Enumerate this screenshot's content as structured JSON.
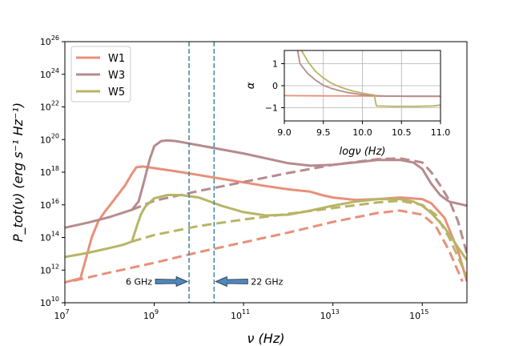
{
  "chart_data": [
    {
      "type": "line",
      "title": "",
      "xlabel": "ν (Hz)",
      "ylabel": "P_tot(ν) (erg s⁻¹ Hz⁻¹)",
      "xscale": "log",
      "yscale": "log",
      "xlim_log10": [
        7,
        16
      ],
      "ylim_log10": [
        10,
        26
      ],
      "xticks_log10": [
        7,
        9,
        11,
        13,
        15
      ],
      "yticks_log10": [
        10,
        12,
        14,
        16,
        18,
        20,
        22,
        24,
        26
      ],
      "tick_base": "10",
      "legend": {
        "placement": "top-left",
        "entries": [
          {
            "label": "W1",
            "color": "#e8907a"
          },
          {
            "label": "W3",
            "color": "#b68b8d"
          },
          {
            "label": "W5",
            "color": "#b7b565"
          }
        ]
      },
      "series": [
        {
          "name": "W1 total",
          "style": "solid",
          "color": "#e8907a",
          "points_log10": [
            [
              7.0,
              11.25
            ],
            [
              7.35,
              11.5
            ],
            [
              7.45,
              12.5
            ],
            [
              7.6,
              14.0
            ],
            [
              7.75,
              15.0
            ],
            [
              7.9,
              15.6
            ],
            [
              8.1,
              16.3
            ],
            [
              8.35,
              17.2
            ],
            [
              8.5,
              17.9
            ],
            [
              8.6,
              18.3
            ],
            [
              8.75,
              18.35
            ],
            [
              9.5,
              18.05
            ],
            [
              10.5,
              17.6
            ],
            [
              11.5,
              17.15
            ],
            [
              12.0,
              16.95
            ],
            [
              12.5,
              16.8
            ],
            [
              12.75,
              16.6
            ],
            [
              13.0,
              16.45
            ],
            [
              13.5,
              16.3
            ],
            [
              14.0,
              16.35
            ],
            [
              14.5,
              16.45
            ],
            [
              15.0,
              16.35
            ],
            [
              15.2,
              16.1
            ],
            [
              15.5,
              15.2
            ],
            [
              15.8,
              13.2
            ],
            [
              16.0,
              11.3
            ]
          ]
        },
        {
          "name": "W1 synchrotron",
          "style": "dashed",
          "color": "#e8907a",
          "points_log10": [
            [
              7.2,
              11.35
            ],
            [
              8.0,
              11.85
            ],
            [
              9.0,
              12.45
            ],
            [
              10.0,
              13.1
            ],
            [
              11.0,
              13.7
            ],
            [
              12.0,
              14.3
            ],
            [
              13.0,
              14.95
            ],
            [
              14.0,
              15.5
            ],
            [
              14.5,
              15.65
            ],
            [
              15.0,
              15.4
            ],
            [
              15.3,
              14.7
            ],
            [
              15.6,
              13.2
            ],
            [
              15.9,
              11.3
            ]
          ]
        },
        {
          "name": "W3 total",
          "style": "solid",
          "color": "#b68b8d",
          "points_log10": [
            [
              7.0,
              14.6
            ],
            [
              7.5,
              14.9
            ],
            [
              8.0,
              15.25
            ],
            [
              8.5,
              15.7
            ],
            [
              8.65,
              16.2
            ],
            [
              8.75,
              17.2
            ],
            [
              8.9,
              18.8
            ],
            [
              9.0,
              19.6
            ],
            [
              9.15,
              19.9
            ],
            [
              9.3,
              19.95
            ],
            [
              9.5,
              19.9
            ],
            [
              10.0,
              19.65
            ],
            [
              10.5,
              19.4
            ],
            [
              11.0,
              19.15
            ],
            [
              11.5,
              18.85
            ],
            [
              12.0,
              18.55
            ],
            [
              12.5,
              18.4
            ],
            [
              13.0,
              18.45
            ],
            [
              13.5,
              18.6
            ],
            [
              14.0,
              18.75
            ],
            [
              14.5,
              18.75
            ],
            [
              14.8,
              18.6
            ],
            [
              15.0,
              18.2
            ],
            [
              15.2,
              17.3
            ],
            [
              15.4,
              16.6
            ],
            [
              15.6,
              16.2
            ],
            [
              16.0,
              15.95
            ]
          ]
        },
        {
          "name": "W3 synchrotron",
          "style": "dashed",
          "color": "#b68b8d",
          "points_log10": [
            [
              8.5,
              15.7
            ],
            [
              9.0,
              16.25
            ],
            [
              10.0,
              16.85
            ],
            [
              11.0,
              17.4
            ],
            [
              12.0,
              17.95
            ],
            [
              13.0,
              18.45
            ],
            [
              14.0,
              18.8
            ],
            [
              14.5,
              18.85
            ],
            [
              15.0,
              18.6
            ],
            [
              15.2,
              18.0
            ],
            [
              15.4,
              17.2
            ],
            [
              15.6,
              16.3
            ],
            [
              15.8,
              15.0
            ],
            [
              16.0,
              13.0
            ]
          ]
        },
        {
          "name": "W5 total",
          "style": "solid",
          "color": "#b7b565",
          "points_log10": [
            [
              7.0,
              12.8
            ],
            [
              7.5,
              13.05
            ],
            [
              8.0,
              13.35
            ],
            [
              8.3,
              13.55
            ],
            [
              8.5,
              13.75
            ],
            [
              8.6,
              14.6
            ],
            [
              8.7,
              15.4
            ],
            [
              8.8,
              15.9
            ],
            [
              9.0,
              16.4
            ],
            [
              9.3,
              16.6
            ],
            [
              9.6,
              16.6
            ],
            [
              10.0,
              16.45
            ],
            [
              10.5,
              15.95
            ],
            [
              11.0,
              15.55
            ],
            [
              11.5,
              15.35
            ],
            [
              12.0,
              15.4
            ],
            [
              12.5,
              15.65
            ],
            [
              13.0,
              15.95
            ],
            [
              13.5,
              16.2
            ],
            [
              14.0,
              16.35
            ],
            [
              14.5,
              16.35
            ],
            [
              14.8,
              16.2
            ],
            [
              15.0,
              15.95
            ],
            [
              15.2,
              15.5
            ],
            [
              15.5,
              14.6
            ],
            [
              15.8,
              13.4
            ],
            [
              16.0,
              12.6
            ]
          ]
        },
        {
          "name": "W5 synchrotron",
          "style": "dashed",
          "color": "#b7b565",
          "points_log10": [
            [
              8.5,
              13.75
            ],
            [
              9.0,
              14.15
            ],
            [
              10.0,
              14.7
            ],
            [
              11.0,
              15.1
            ],
            [
              12.0,
              15.45
            ],
            [
              13.0,
              15.8
            ],
            [
              14.0,
              16.15
            ],
            [
              14.5,
              16.25
            ],
            [
              15.0,
              16.0
            ],
            [
              15.3,
              15.4
            ],
            [
              15.6,
              14.0
            ],
            [
              15.9,
              12.2
            ],
            [
              16.0,
              11.6
            ]
          ]
        }
      ],
      "vlines_log10": [
        9.78,
        10.34
      ],
      "vline_color": "#3f87a8",
      "annotations": [
        {
          "text": "6 GHz",
          "target_log10": [
            9.78,
            11.3
          ],
          "side": "left"
        },
        {
          "text": "22 GHz",
          "target_log10": [
            10.34,
            11.3
          ],
          "side": "right"
        }
      ],
      "arrow_color": "#4f87b7"
    },
    {
      "type": "line",
      "title": "",
      "xlabel": "logν (Hz)",
      "ylabel": "α",
      "xlim": [
        9.0,
        11.0
      ],
      "ylim": [
        -1.6,
        1.6
      ],
      "xticks": [
        "9.0",
        "9.5",
        "10.0",
        "10.5",
        "11.0"
      ],
      "yticks": [
        "1",
        "0",
        "−1"
      ],
      "ytick_values": [
        1,
        0,
        -1
      ],
      "grid": true,
      "series": [
        {
          "name": "W1",
          "color": "#e8907a",
          "points": [
            [
              9.0,
              -0.45
            ],
            [
              9.5,
              -0.46
            ],
            [
              10.0,
              -0.47
            ],
            [
              10.5,
              -0.48
            ],
            [
              11.0,
              -0.48
            ]
          ]
        },
        {
          "name": "W3",
          "color": "#b68b8d",
          "points": [
            [
              9.17,
              1.6
            ],
            [
              9.2,
              1.0
            ],
            [
              9.3,
              0.55
            ],
            [
              9.4,
              0.25
            ],
            [
              9.5,
              0.02
            ],
            [
              9.6,
              -0.12
            ],
            [
              9.7,
              -0.22
            ],
            [
              9.8,
              -0.3
            ],
            [
              9.9,
              -0.36
            ],
            [
              10.0,
              -0.41
            ],
            [
              10.1,
              -0.44
            ],
            [
              10.3,
              -0.47
            ],
            [
              10.6,
              -0.48
            ],
            [
              11.0,
              -0.48
            ]
          ]
        },
        {
          "name": "W5",
          "color": "#b7b565",
          "points": [
            [
              9.22,
              1.6
            ],
            [
              9.3,
              1.1
            ],
            [
              9.4,
              0.65
            ],
            [
              9.5,
              0.35
            ],
            [
              9.6,
              0.12
            ],
            [
              9.7,
              -0.04
            ],
            [
              9.8,
              -0.16
            ],
            [
              9.9,
              -0.26
            ],
            [
              10.0,
              -0.34
            ],
            [
              10.1,
              -0.4
            ],
            [
              10.15,
              -0.42
            ],
            [
              10.18,
              -0.92
            ],
            [
              10.4,
              -0.94
            ],
            [
              10.7,
              -0.94
            ],
            [
              10.9,
              -0.92
            ],
            [
              11.0,
              -0.88
            ]
          ]
        }
      ]
    }
  ]
}
